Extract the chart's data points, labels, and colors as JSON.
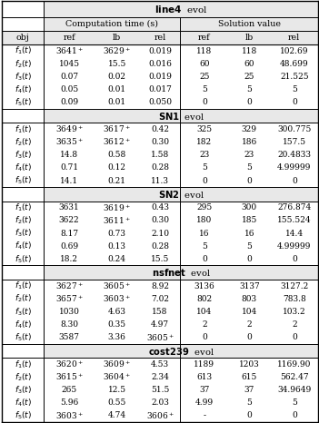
{
  "sections": [
    {
      "header": "line4",
      "rows": [
        [
          "$f_1(t)$",
          "3641$^+$",
          "3629$^+$",
          "0.019",
          "118",
          "118",
          "102.69"
        ],
        [
          "$f_2(t)$",
          "1045",
          "15.5",
          "0.016",
          "60",
          "60",
          "48.699"
        ],
        [
          "$f_3(t)$",
          "0.07",
          "0.02",
          "0.019",
          "25",
          "25",
          "21.525"
        ],
        [
          "$f_4(t)$",
          "0.05",
          "0.01",
          "0.017",
          "5",
          "5",
          "5"
        ],
        [
          "$f_5(t)$",
          "0.09",
          "0.01",
          "0.050",
          "0",
          "0",
          "0"
        ]
      ]
    },
    {
      "header": "SN1",
      "rows": [
        [
          "$f_1(t)$",
          "3649$^+$",
          "3617$^+$",
          "0.42",
          "325",
          "329",
          "300.775"
        ],
        [
          "$f_2(t)$",
          "3635$^+$",
          "3612$^+$",
          "0.30",
          "182",
          "186",
          "157.5"
        ],
        [
          "$f_3(t)$",
          "14.8",
          "0.58",
          "1.58",
          "23",
          "23",
          "20.4833"
        ],
        [
          "$f_4(t)$",
          "0.71",
          "0.12",
          "0.28",
          "5",
          "5",
          "4.99999"
        ],
        [
          "$f_5(t)$",
          "14.1",
          "0.21",
          "11.3",
          "0",
          "0",
          "0"
        ]
      ]
    },
    {
      "header": "SN2",
      "rows": [
        [
          "$f_1(t)$",
          "3631",
          "3619$^+$",
          "0.43",
          "295",
          "300",
          "276.874"
        ],
        [
          "$f_2(t)$",
          "3622",
          "3611$^+$",
          "0.30",
          "180",
          "185",
          "155.524"
        ],
        [
          "$f_3(t)$",
          "8.17",
          "0.73",
          "2.10",
          "16",
          "16",
          "14.4"
        ],
        [
          "$f_4(t)$",
          "0.69",
          "0.13",
          "0.28",
          "5",
          "5",
          "4.99999"
        ],
        [
          "$f_5(t)$",
          "18.2",
          "0.24",
          "15.5",
          "0",
          "0",
          "0"
        ]
      ]
    },
    {
      "header": "nsfnet",
      "rows": [
        [
          "$f_1(t)$",
          "3627$^+$",
          "3605$^+$",
          "8.92",
          "3136",
          "3137",
          "3127.2"
        ],
        [
          "$f_2(t)$",
          "3657$^+$",
          "3603$^+$",
          "7.02",
          "802",
          "803",
          "783.8"
        ],
        [
          "$f_3(t)$",
          "1030",
          "4.63",
          "158",
          "104",
          "104",
          "103.2"
        ],
        [
          "$f_4(t)$",
          "8.30",
          "0.35",
          "4.97",
          "2",
          "2",
          "2"
        ],
        [
          "$f_5(t)$",
          "3587",
          "3.36",
          "3605$^+$",
          "0",
          "0",
          "0"
        ]
      ]
    },
    {
      "header": "cost239",
      "rows": [
        [
          "$f_1(t)$",
          "3620$^+$",
          "3609$^+$",
          "4.53",
          "1189",
          "1203",
          "1169.90"
        ],
        [
          "$f_2(t)$",
          "3615$^+$",
          "3604$^+$",
          "2.34",
          "613",
          "615",
          "562.47"
        ],
        [
          "$f_3(t)$",
          "265",
          "12.5",
          "51.5",
          "37",
          "37",
          "34.9649"
        ],
        [
          "$f_4(t)$",
          "5.96",
          "0.55",
          "2.03",
          "4.99",
          "5",
          "5"
        ],
        [
          "$f_5(t)$",
          "3603$^+$",
          "4.74",
          "3606$^+$",
          "-",
          "0",
          "0"
        ]
      ]
    }
  ],
  "col_header1": "Computation time (s)",
  "col_header2": "Solution value",
  "sub_headers": [
    "obj",
    "ref",
    "lb",
    "rel",
    "ref",
    "lb",
    "rel"
  ],
  "evol_label": "evol",
  "bg_color": "#f0f0f0",
  "header_bg": "#d0d0d0"
}
